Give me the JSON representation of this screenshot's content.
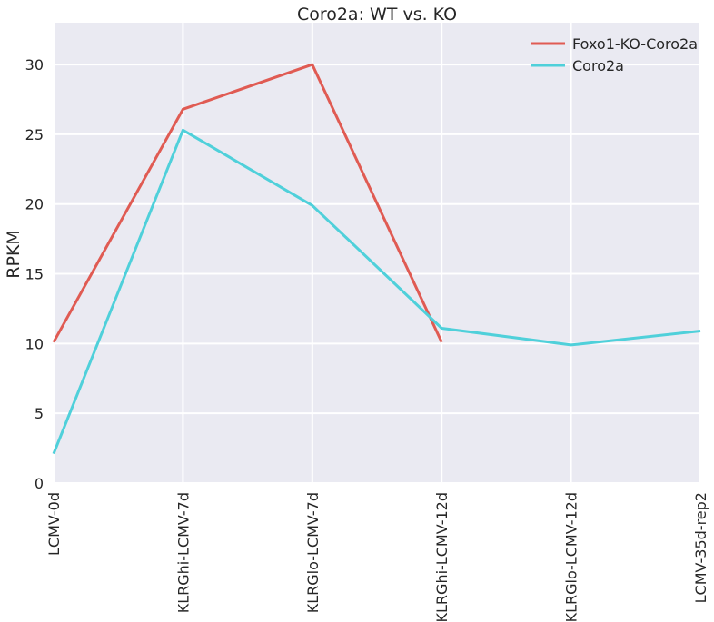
{
  "chart_data": {
    "type": "line",
    "title": "Coro2a: WT vs. KO",
    "xlabel": "",
    "ylabel": "RPKM",
    "categories": [
      "LCMV-0d",
      "KLRGhi-LCMV-7d",
      "KLRGlo-LCMV-7d",
      "KLRGhi-LCMV-12d",
      "KLRGlo-LCMV-12d",
      "LCMV-35d-rep2"
    ],
    "ylim": [
      0,
      33
    ],
    "yticks": [
      "0",
      "5",
      "10",
      "15",
      "20",
      "25",
      "30"
    ],
    "grid": true,
    "legend_position": "top-right",
    "series": [
      {
        "name": "Foxo1-KO-Coro2a",
        "color": "#e05b53",
        "values": [
          10.1,
          26.8,
          30.0,
          10.1,
          null,
          null
        ]
      },
      {
        "name": "Coro2a",
        "color": "#4fd0da",
        "values": [
          2.1,
          25.3,
          19.9,
          11.1,
          9.9,
          10.9
        ]
      }
    ]
  }
}
